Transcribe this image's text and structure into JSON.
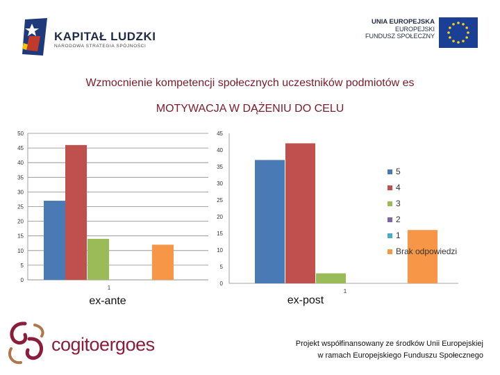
{
  "header": {
    "logo_title": "KAPITAŁ LUDZKI",
    "logo_subtitle": "NARODOWA STRATEGIA SPÓJNOŚCI",
    "ue_line1": "UNIA EUROPEJSKA",
    "ue_line2": "EUROPEJSKI",
    "ue_line3": "FUNDUSZ SPOŁECZNY",
    "title": "Wzmocnienie kompetencji społecznych uczestników podmiotów es"
  },
  "colors": {
    "series_5": "#4a7ab5",
    "series_4": "#c0504d",
    "series_3": "#9bbb59",
    "series_2": "#8064a2",
    "series_1": "#4bacc6",
    "series_brak": "#f79646",
    "title": "#7b1b2a",
    "logo_accent": "#8a1d3a"
  },
  "chart_data": [
    {
      "type": "bar",
      "title": "MOTYWACJA W DĄŻENIU DO CELU",
      "xlabel": "ex-ante",
      "categories": [
        "1"
      ],
      "ylim": [
        0,
        50
      ],
      "yticks": [
        0,
        5,
        10,
        15,
        20,
        25,
        30,
        35,
        40,
        45,
        50
      ],
      "grid": true,
      "series": [
        {
          "name": "5",
          "values": [
            27
          ],
          "color": "#4a7ab5"
        },
        {
          "name": "4",
          "values": [
            46
          ],
          "color": "#c0504d"
        },
        {
          "name": "3",
          "values": [
            14
          ],
          "color": "#9bbb59"
        },
        {
          "name": "2",
          "values": [
            0
          ],
          "color": "#8064a2"
        },
        {
          "name": "1",
          "values": [
            0
          ],
          "color": "#4bacc6"
        },
        {
          "name": "Brak odpowiedzi",
          "values": [
            12
          ],
          "color": "#f79646"
        }
      ]
    },
    {
      "type": "bar",
      "xlabel": "ex-post",
      "categories": [
        "1"
      ],
      "ylim": [
        0,
        45
      ],
      "yticks": [
        0,
        5,
        10,
        15,
        20,
        25,
        30,
        35,
        40,
        45
      ],
      "grid": false,
      "legend": "right",
      "series": [
        {
          "name": "5",
          "values": [
            37
          ],
          "color": "#4a7ab5"
        },
        {
          "name": "4",
          "values": [
            42
          ],
          "color": "#c0504d"
        },
        {
          "name": "3",
          "values": [
            3
          ],
          "color": "#9bbb59"
        },
        {
          "name": "2",
          "values": [
            0
          ],
          "color": "#8064a2"
        },
        {
          "name": "1",
          "values": [
            0
          ],
          "color": "#4bacc6"
        },
        {
          "name": "Brak odpowiedzi",
          "values": [
            16
          ],
          "color": "#f79646"
        }
      ]
    }
  ],
  "footer": {
    "logo_text": "cogitoergoes",
    "line1": "Projekt  współfinansowany ze środków Unii Europejskiej",
    "line2": "w ramach Europejskiego Funduszu Społecznego"
  }
}
